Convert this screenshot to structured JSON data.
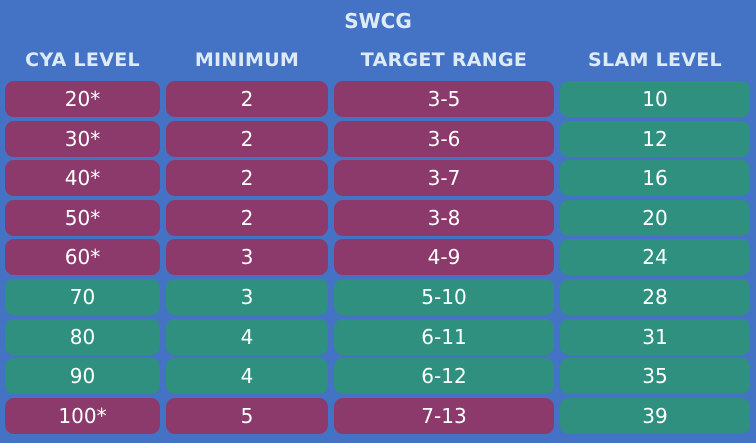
{
  "title": "SWCG",
  "headers": [
    "CYA LEVEL",
    "MINIMUM",
    "TARGET RANGE",
    "SLAM LEVEL"
  ],
  "colors": {
    "background": "#4472c4",
    "purple": "#8b3a6b",
    "green": "#2f9080",
    "header_text": "#ddebf7"
  },
  "rows": [
    {
      "cells": [
        "20*",
        "2",
        "3-5",
        "10"
      ],
      "colors": [
        "purple",
        "purple",
        "purple",
        "green"
      ]
    },
    {
      "cells": [
        "30*",
        "2",
        "3-6",
        "12"
      ],
      "colors": [
        "purple",
        "purple",
        "purple",
        "green"
      ]
    },
    {
      "cells": [
        "40*",
        "2",
        "3-7",
        "16"
      ],
      "colors": [
        "purple",
        "purple",
        "purple",
        "green"
      ]
    },
    {
      "cells": [
        "50*",
        "2",
        "3-8",
        "20"
      ],
      "colors": [
        "purple",
        "purple",
        "purple",
        "green"
      ]
    },
    {
      "cells": [
        "60*",
        "3",
        "4-9",
        "24"
      ],
      "colors": [
        "purple",
        "purple",
        "purple",
        "green"
      ]
    },
    {
      "cells": [
        "70",
        "3",
        "5-10",
        "28"
      ],
      "colors": [
        "green",
        "green",
        "green",
        "green"
      ]
    },
    {
      "cells": [
        "80",
        "4",
        "6-11",
        "31"
      ],
      "colors": [
        "green",
        "green",
        "green",
        "green"
      ]
    },
    {
      "cells": [
        "90",
        "4",
        "6-12",
        "35"
      ],
      "colors": [
        "green",
        "green",
        "green",
        "green"
      ]
    },
    {
      "cells": [
        "100*",
        "5",
        "7-13",
        "39"
      ],
      "colors": [
        "purple",
        "purple",
        "purple",
        "green"
      ]
    }
  ]
}
